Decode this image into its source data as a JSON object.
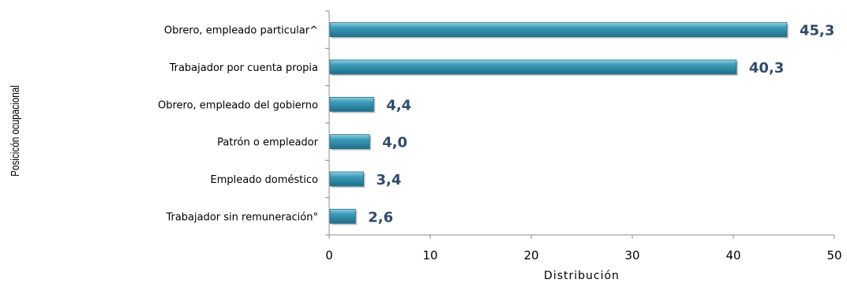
{
  "chart_data": {
    "type": "bar",
    "orientation": "horizontal",
    "categories": [
      "Obrero, empleado particular^",
      "Trabajador por cuenta propia",
      "Obrero, empleado del gobierno",
      "Patrón o empleador",
      "Empleado doméstico",
      "Trabajador sin remuneración°"
    ],
    "values": [
      45.3,
      40.3,
      4.4,
      4.0,
      3.4,
      2.6
    ],
    "value_labels": [
      "45,3",
      "40,3",
      "4,4",
      "4,0",
      "3,4",
      "2,6"
    ],
    "xlabel": "Distribución",
    "ylabel": "Posicicón ocupacional",
    "xlim": [
      0,
      50
    ],
    "xticks": [
      0,
      10,
      20,
      30,
      40,
      50
    ],
    "grid": false,
    "legend": "none",
    "bar_color": "#3a9bb8",
    "bar_highlight": "#8fd0e2",
    "bar_shadow": "#1f6f8a",
    "value_label_color": "#2f4a6b"
  }
}
